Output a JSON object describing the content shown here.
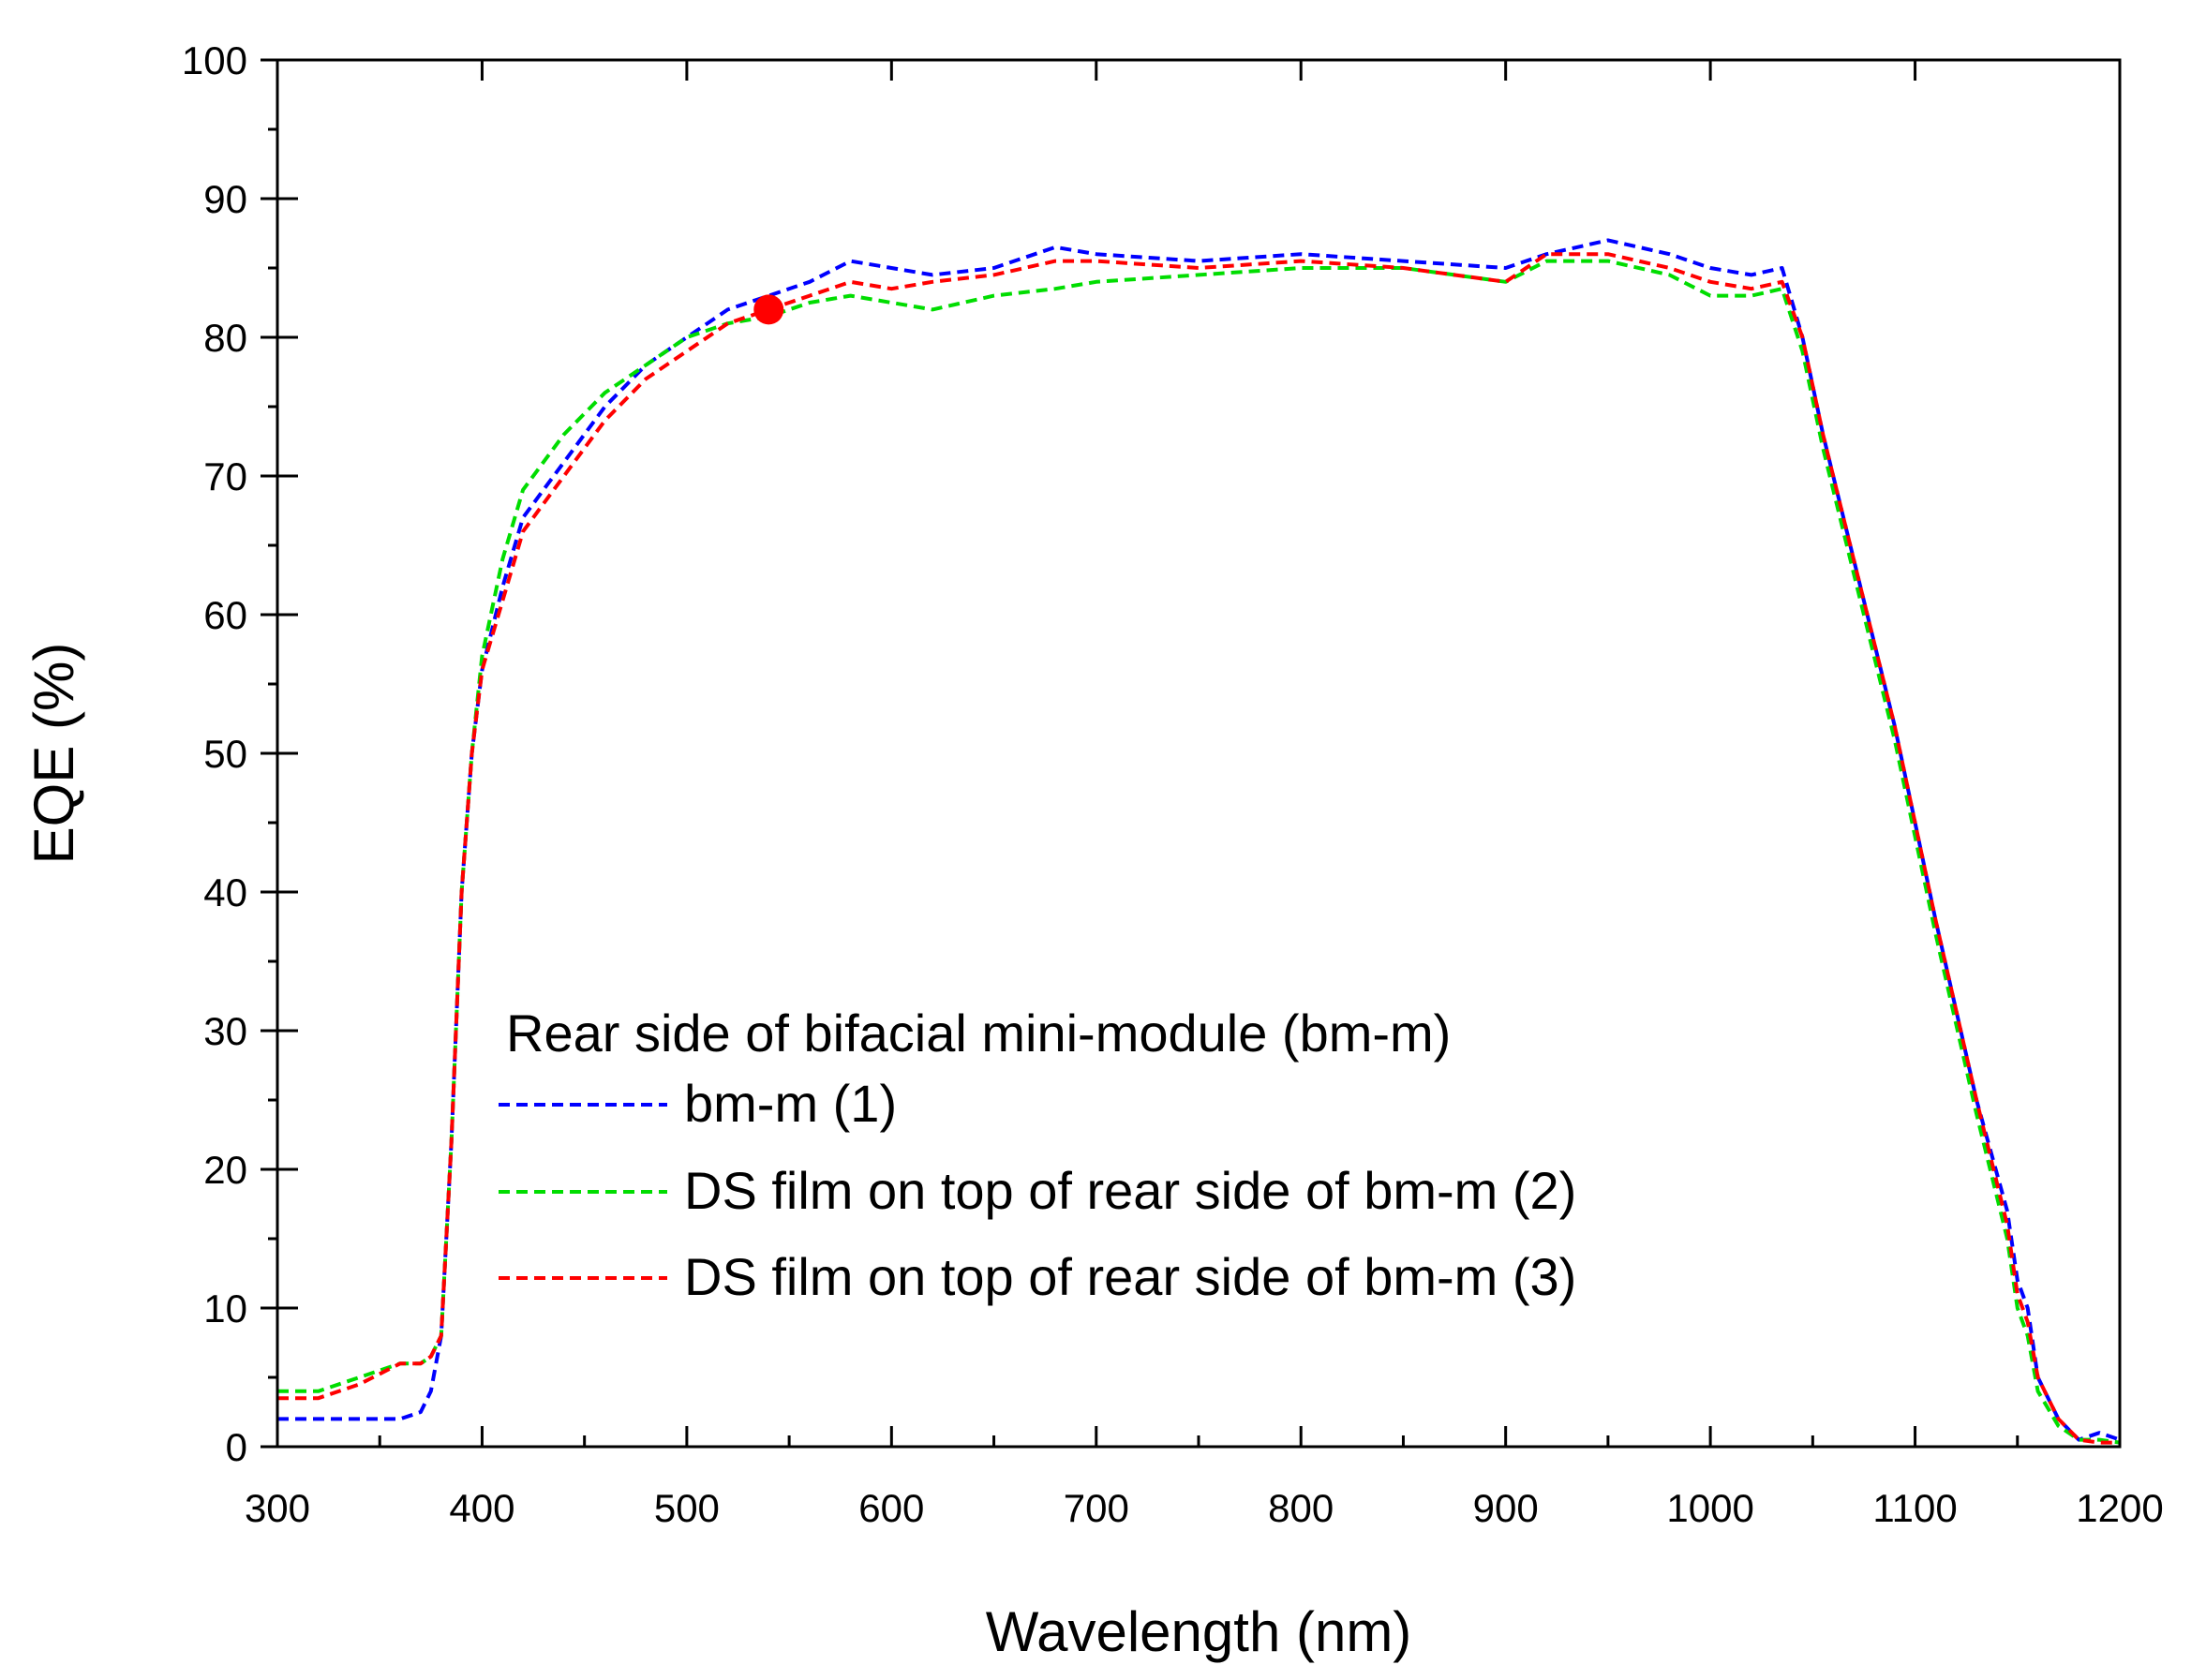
{
  "chart_data": {
    "type": "line",
    "xlabel": "Wavelength (nm)",
    "ylabel": "EQE (%)",
    "xlim": [
      300,
      1200
    ],
    "ylim": [
      0,
      100
    ],
    "xticks": [
      300,
      400,
      500,
      600,
      700,
      800,
      900,
      1000,
      1100,
      1200
    ],
    "yticks": [
      0,
      10,
      20,
      30,
      40,
      50,
      60,
      70,
      80,
      90,
      100
    ],
    "grid": false,
    "legend": {
      "title": "Rear side of bifacial mini-module (bm-m)",
      "placement": "bottom-center"
    },
    "series": [
      {
        "name": "bm-m (1)",
        "color": "#0000ff",
        "x": [
          300,
          320,
          340,
          360,
          370,
          375,
          380,
          385,
          390,
          395,
          400,
          410,
          420,
          440,
          460,
          480,
          500,
          520,
          540,
          560,
          580,
          600,
          620,
          650,
          680,
          700,
          750,
          800,
          850,
          900,
          920,
          950,
          980,
          1000,
          1020,
          1035,
          1045,
          1055,
          1070,
          1090,
          1110,
          1130,
          1145,
          1150,
          1155,
          1160,
          1170,
          1180,
          1190,
          1200
        ],
        "y": [
          2,
          2,
          2,
          2,
          2.5,
          4,
          8,
          22,
          40,
          50,
          56,
          62,
          67,
          71,
          75,
          78,
          80,
          82,
          83,
          84,
          85.5,
          85,
          84.5,
          85,
          86.5,
          86,
          85.5,
          86,
          85.5,
          85,
          86,
          87,
          86,
          85,
          84.5,
          85,
          80,
          73,
          64,
          52,
          38,
          25,
          17,
          12,
          10,
          5,
          2,
          0.5,
          1,
          0.5
        ]
      },
      {
        "name": "DS film on top of rear side of bm-m (2)",
        "color": "#00dd00",
        "x": [
          300,
          320,
          340,
          360,
          370,
          375,
          380,
          385,
          390,
          395,
          400,
          410,
          420,
          440,
          460,
          480,
          500,
          520,
          540,
          560,
          580,
          600,
          620,
          650,
          680,
          700,
          750,
          800,
          850,
          900,
          920,
          950,
          980,
          1000,
          1020,
          1035,
          1045,
          1055,
          1070,
          1090,
          1110,
          1130,
          1145,
          1150,
          1155,
          1160,
          1170,
          1180,
          1190,
          1200
        ],
        "y": [
          4,
          4,
          5,
          6,
          6,
          6.5,
          8,
          22,
          40,
          50,
          57,
          64,
          69,
          73,
          76,
          78,
          80,
          81,
          81.5,
          82.5,
          83,
          82.5,
          82,
          83,
          83.5,
          84,
          84.5,
          85,
          85,
          84,
          85.5,
          85.5,
          84.5,
          83,
          83,
          83.5,
          79,
          72,
          63,
          51,
          37,
          24,
          15,
          10,
          8,
          4,
          1.5,
          0.5,
          0.5,
          0.3
        ]
      },
      {
        "name": "DS film on top of rear side of bm-m (3)",
        "color": "#ff0000",
        "x": [
          300,
          320,
          340,
          360,
          370,
          375,
          380,
          385,
          390,
          395,
          400,
          410,
          420,
          440,
          460,
          480,
          500,
          520,
          540,
          560,
          580,
          600,
          620,
          650,
          680,
          700,
          750,
          800,
          850,
          900,
          920,
          950,
          980,
          1000,
          1020,
          1035,
          1045,
          1055,
          1070,
          1090,
          1110,
          1130,
          1145,
          1150,
          1155,
          1160,
          1170,
          1180,
          1190,
          1200
        ],
        "y": [
          3.5,
          3.5,
          4.5,
          6,
          6,
          6.5,
          8,
          22,
          40,
          50,
          56,
          61,
          66,
          70,
          74,
          77,
          79,
          81,
          82,
          83,
          84,
          83.5,
          84,
          84.5,
          85.5,
          85.5,
          85,
          85.5,
          85,
          84,
          86,
          86,
          85,
          84,
          83.5,
          84,
          80,
          73,
          64,
          52,
          38,
          25,
          16,
          11,
          9,
          5,
          2,
          0.5,
          0.3,
          0.3
        ]
      }
    ],
    "annotations": [
      {
        "type": "marker",
        "x": 540,
        "y": 82,
        "color": "#ff0000"
      }
    ]
  }
}
